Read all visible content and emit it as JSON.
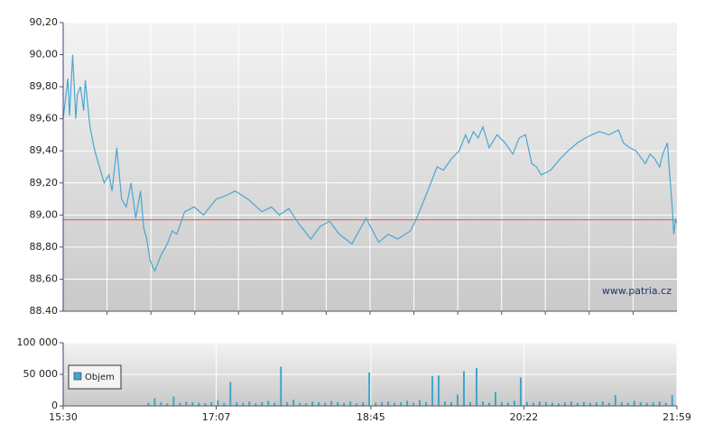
{
  "chart_data": [
    {
      "type": "line",
      "x": [
        930,
        933,
        934,
        936,
        938,
        939,
        941,
        943,
        944,
        947,
        950,
        953,
        956,
        959,
        961,
        964,
        967,
        970,
        973,
        976,
        979,
        981,
        983,
        985,
        988,
        992,
        996,
        999,
        1002,
        1007,
        1013,
        1019,
        1027,
        1033,
        1039,
        1047,
        1056,
        1062,
        1067,
        1073,
        1079,
        1087,
        1093,
        1099,
        1105,
        1113,
        1122,
        1130,
        1136,
        1142,
        1150,
        1154,
        1159,
        1163,
        1167,
        1171,
        1176,
        1181,
        1185,
        1187,
        1190,
        1193,
        1196,
        1200,
        1205,
        1210,
        1215,
        1219,
        1223,
        1227,
        1230,
        1233,
        1239,
        1245,
        1250,
        1256,
        1261,
        1265,
        1270,
        1276,
        1282,
        1285,
        1289,
        1293,
        1296,
        1299,
        1302,
        1305,
        1308,
        1310,
        1313,
        1314,
        1316,
        1317,
        1318,
        1319
      ],
      "values": [
        89.6,
        89.85,
        89.62,
        90.0,
        89.6,
        89.75,
        89.8,
        89.65,
        89.84,
        89.55,
        89.4,
        89.3,
        89.2,
        89.25,
        89.15,
        89.42,
        89.1,
        89.05,
        89.2,
        88.98,
        89.15,
        88.92,
        88.85,
        88.72,
        88.65,
        88.75,
        88.82,
        88.9,
        88.88,
        89.02,
        89.05,
        89.0,
        89.1,
        89.12,
        89.15,
        89.1,
        89.02,
        89.05,
        89.0,
        89.04,
        88.95,
        88.85,
        88.93,
        88.96,
        88.88,
        88.82,
        88.98,
        88.83,
        88.88,
        88.85,
        88.9,
        88.98,
        89.1,
        89.2,
        89.3,
        89.28,
        89.35,
        89.4,
        89.5,
        89.45,
        89.52,
        89.48,
        89.55,
        89.42,
        89.5,
        89.45,
        89.38,
        89.48,
        89.5,
        89.32,
        89.3,
        89.25,
        89.28,
        89.35,
        89.4,
        89.45,
        89.48,
        89.5,
        89.52,
        89.5,
        89.53,
        89.45,
        89.42,
        89.4,
        89.36,
        89.32,
        89.38,
        89.35,
        89.3,
        89.38,
        89.45,
        89.3,
        89.05,
        88.88,
        88.97,
        88.95
      ],
      "color": "#4aa6cf",
      "xlim": [
        930,
        1319
      ],
      "xgrid": [
        957.8,
        985.6,
        1013.4,
        1041.1,
        1068.9,
        1096.7,
        1124.5,
        1152.3,
        1180.1,
        1207.9,
        1235.6,
        1263.4,
        1291.2
      ],
      "ylim": [
        88.4,
        90.2
      ],
      "yticks": [
        {
          "value": 88.4,
          "label": "88.40"
        },
        {
          "value": 88.6,
          "label": "88,60"
        },
        {
          "value": 88.8,
          "label": "88,80"
        },
        {
          "value": 89.0,
          "label": "89,00"
        },
        {
          "value": 89.2,
          "label": "89,20"
        },
        {
          "value": 89.4,
          "label": "89,40"
        },
        {
          "value": 89.6,
          "label": "89,60"
        },
        {
          "value": 89.8,
          "label": "89,80"
        },
        {
          "value": 90.0,
          "label": "90,00"
        },
        {
          "value": 90.2,
          "label": "90,20"
        }
      ],
      "reference_line": {
        "value": 88.97,
        "color": "#e06060"
      },
      "annotation": "www.patria.cz"
    },
    {
      "type": "bar",
      "x": [
        984,
        988,
        992,
        996,
        1000,
        1004,
        1008,
        1012,
        1016,
        1020,
        1024,
        1028,
        1032,
        1036,
        1040,
        1044,
        1048,
        1052,
        1056,
        1060,
        1064,
        1068,
        1072,
        1076,
        1080,
        1084,
        1088,
        1092,
        1096,
        1100,
        1104,
        1108,
        1112,
        1116,
        1120,
        1124,
        1128,
        1132,
        1136,
        1140,
        1144,
        1148,
        1152,
        1156,
        1160,
        1164,
        1168,
        1172,
        1176,
        1180,
        1184,
        1188,
        1192,
        1196,
        1200,
        1204,
        1208,
        1212,
        1216,
        1220,
        1224,
        1228,
        1232,
        1236,
        1240,
        1244,
        1248,
        1252,
        1256,
        1260,
        1264,
        1268,
        1272,
        1276,
        1280,
        1284,
        1288,
        1292,
        1296,
        1300,
        1304,
        1308,
        1312,
        1316
      ],
      "series": [
        {
          "name": "Objem",
          "color": "#3fa6cc",
          "values": [
            5000,
            12000,
            6000,
            4000,
            15000,
            5000,
            7000,
            6000,
            5000,
            4000,
            6000,
            9000,
            5000,
            38000,
            6000,
            5000,
            7000,
            4000,
            6000,
            8000,
            5000,
            62000,
            6000,
            10000,
            5000,
            4000,
            7000,
            6000,
            5000,
            8000,
            6000,
            5000,
            7000,
            4000,
            6000,
            53000,
            5000,
            6000,
            7000,
            5000,
            6000,
            8000,
            5000,
            9000,
            6000,
            47000,
            48000,
            7000,
            6000,
            18000,
            55000,
            6000,
            60000,
            7000,
            5000,
            22000,
            6000,
            5000,
            8000,
            45000,
            6000,
            5000,
            7000,
            6000,
            5000,
            4000,
            6000,
            7000,
            5000,
            6000,
            5000,
            6000,
            7000,
            5000,
            17000,
            6000,
            5000,
            8000,
            6000,
            5000,
            6000,
            7000,
            5000,
            17000
          ]
        }
      ],
      "xlim": [
        930,
        1319
      ],
      "xticks": [
        {
          "value": 930,
          "label": "15:30"
        },
        {
          "value": 1027,
          "label": "17:07"
        },
        {
          "value": 1125,
          "label": "18:45"
        },
        {
          "value": 1222,
          "label": "20:22"
        },
        {
          "value": 1319,
          "label": "21:59"
        }
      ],
      "ylim": [
        0,
        100000
      ],
      "yticks": [
        0,
        {
          "value": 50000,
          "label": "50 000"
        },
        {
          "value": 100000,
          "label": "100 000"
        }
      ]
    }
  ]
}
